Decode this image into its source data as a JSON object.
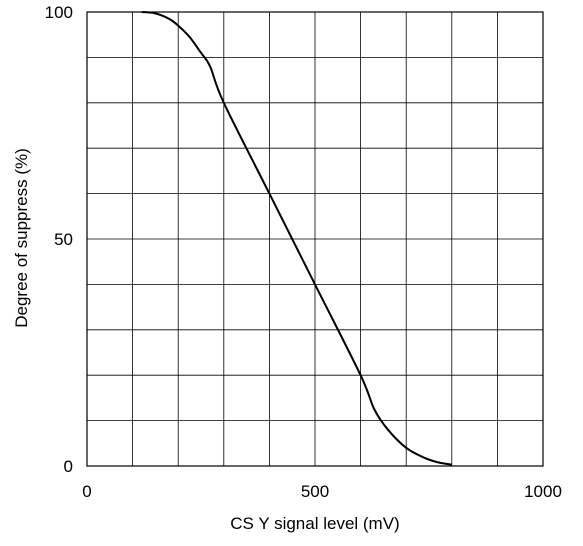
{
  "chart_data": {
    "type": "line",
    "title": "",
    "xlabel": "CS Y signal level (mV)",
    "ylabel": "Degree of suppress (%)",
    "xlim": [
      0,
      1000
    ],
    "ylim": [
      0,
      100
    ],
    "x_ticks": [
      0,
      500,
      1000
    ],
    "x_tick_labels": [
      "0",
      "500",
      "1000"
    ],
    "y_ticks": [
      0,
      50,
      100
    ],
    "y_tick_labels": [
      "0",
      "50",
      "100"
    ],
    "x_grid_step": 100,
    "y_grid_step": 10,
    "grid": true,
    "legend": "none",
    "series": [
      {
        "x": [
          120,
          150,
          180,
          200,
          225,
          250,
          270,
          300,
          400,
          500,
          600,
          630,
          660,
          700,
          740,
          770,
          800
        ],
        "y": [
          100,
          99.7,
          98.5,
          97,
          94.5,
          91,
          88,
          80,
          60,
          40,
          20,
          12.5,
          8,
          4,
          1.8,
          0.8,
          0.3
        ]
      }
    ]
  },
  "colors": {
    "line": "#000000",
    "grid": "#000000",
    "background": "#ffffff"
  }
}
